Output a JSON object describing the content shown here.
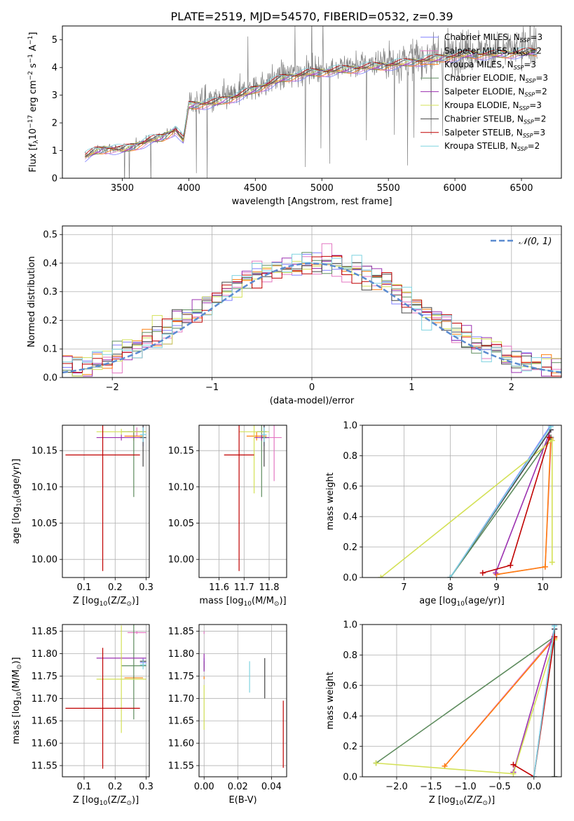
{
  "figure": {
    "title": "PLATE=2519, MJD=54570, FIBERID=0532, z=0.39"
  },
  "chart_data": [
    {
      "id": "spectrum",
      "type": "line",
      "title": "PLATE=2519, MJD=54570, FIBERID=0532, z=0.39",
      "xlabel": "wavelength [Angstrom, rest frame]",
      "ylabel_parts": [
        "Flux [",
        "f",
        "λ",
        "10",
        "−17",
        " erg cm",
        "−2",
        " s",
        "−1",
        " A",
        "−1",
        "]"
      ],
      "xlim": [
        3050,
        6800
      ],
      "ylim": [
        0,
        5.5
      ],
      "xticks": [
        3500,
        4000,
        4500,
        5000,
        5500,
        6000,
        6500
      ],
      "yticks": [
        0,
        1,
        2,
        3,
        4,
        5
      ],
      "grid": false,
      "legend_position": "right",
      "legend": [
        {
          "name": "Chabrier MILES, N",
          "sub": "SSP",
          "tail": "=3",
          "color": "#7f7fff"
        },
        {
          "name": "Salpeter MILES, N",
          "sub": "SSP",
          "tail": "=2",
          "color": "#e377c2"
        },
        {
          "name": "Kroupa MILES, N",
          "sub": "SSP",
          "tail": "=3",
          "color": "#ff7f0e"
        },
        {
          "name": "Chabrier ELODIE, N",
          "sub": "SSP",
          "tail": "=3",
          "color": "#5e8c5e"
        },
        {
          "name": "Salpeter ELODIE, N",
          "sub": "SSP",
          "tail": "=2",
          "color": "#9b30b0"
        },
        {
          "name": "Kroupa ELODIE, N",
          "sub": "SSP",
          "tail": "=3",
          "color": "#d4e157"
        },
        {
          "name": "Chabrier STELIB, N",
          "sub": "SSP",
          "tail": "=2",
          "color": "#444444"
        },
        {
          "name": "Salpeter STELIB, N",
          "sub": "SSP",
          "tail": "=3",
          "color": "#c00000"
        },
        {
          "name": "Kroupa STELIB, N",
          "sub": "SSP",
          "tail": "=2",
          "color": "#7fd3e0"
        }
      ],
      "data_color": "#808080",
      "data_range": [
        3220,
        6620
      ],
      "continuum_knots": [
        [
          3220,
          0.8
        ],
        [
          3300,
          1.0
        ],
        [
          3400,
          1.1
        ],
        [
          3500,
          1.05
        ],
        [
          3600,
          1.2
        ],
        [
          3700,
          1.4
        ],
        [
          3800,
          1.5
        ],
        [
          3900,
          1.8
        ],
        [
          3960,
          1.4
        ],
        [
          4000,
          2.7
        ],
        [
          4200,
          2.8
        ],
        [
          4400,
          3.1
        ],
        [
          4500,
          3.3
        ],
        [
          4700,
          3.7
        ],
        [
          4900,
          3.9
        ],
        [
          5100,
          4.0
        ],
        [
          5300,
          4.1
        ],
        [
          5500,
          4.2
        ],
        [
          5800,
          4.4
        ],
        [
          6100,
          4.6
        ],
        [
          6300,
          4.6
        ],
        [
          6620,
          4.7
        ]
      ]
    },
    {
      "id": "residuals",
      "type": "step",
      "xlabel": "(data-model)/error",
      "ylabel": "Normed distribution",
      "xlim": [
        -2.5,
        2.5
      ],
      "ylim": [
        0,
        0.53
      ],
      "xticks": [
        -2,
        -1,
        0,
        1,
        2
      ],
      "yticks": [
        0.0,
        0.1,
        0.2,
        0.3,
        0.4,
        0.5
      ],
      "grid": true,
      "legend_position": "top-right",
      "gaussian_label": "𝒩(0, 1)",
      "gaussian_color": "#5b8bd0",
      "bin_width": 0.1
    },
    {
      "id": "age_vs_Z",
      "type": "errorbar",
      "xlabel_parts": [
        "Z [log",
        "10",
        "(Z/Z",
        "⊙",
        ")]"
      ],
      "ylabel_parts": [
        "age  [log",
        "10",
        "(age/yr)]"
      ],
      "xlim": [
        0.03,
        0.31
      ],
      "ylim": [
        9.975,
        10.185
      ],
      "xticks": [
        0.1,
        0.2,
        0.3
      ],
      "yticks": [
        10.0,
        10.05,
        10.1,
        10.15
      ],
      "grid": true,
      "points": [
        {
          "color": "#7f7fff",
          "x": 0.29,
          "xerr": 0.01,
          "y": 10.176,
          "yerr": 0.02
        },
        {
          "color": "#e377c2",
          "x": 0.27,
          "xerr": 0.03,
          "y": 10.176,
          "yerr": 0.006
        },
        {
          "color": "#ff7f0e",
          "x": 0.26,
          "xerr": 0.03,
          "y": 10.17,
          "yerr": 0.006
        },
        {
          "color": "#5e8c5e",
          "x": 0.26,
          "xerr": 0.04,
          "y": 10.176,
          "yerr": 0.09
        },
        {
          "color": "#9b30b0",
          "x": 0.22,
          "xerr": 0.08,
          "y": 10.168,
          "yerr": 0.004
        },
        {
          "color": "#d4e157",
          "x": 0.22,
          "xerr": 0.08,
          "y": 10.176,
          "yerr": 0.004
        },
        {
          "color": "#444444",
          "x": 0.29,
          "xerr": 0.01,
          "y": 10.168,
          "yerr": 0.04
        },
        {
          "color": "#c00000",
          "x": 0.16,
          "xerr": 0.12,
          "y": 10.144,
          "yerr": 0.16
        },
        {
          "color": "#7fd3e0",
          "x": 0.29,
          "xerr": 0.01,
          "y": 10.172,
          "yerr": 0.01
        }
      ]
    },
    {
      "id": "age_vs_mass",
      "type": "errorbar",
      "xlabel_parts": [
        "mass [log",
        "10",
        "(M/M",
        "⊙",
        ")]"
      ],
      "ylabel": "",
      "xlim": [
        11.52,
        11.87
      ],
      "ylim": [
        9.975,
        10.185
      ],
      "xticks": [
        11.6,
        11.7,
        11.8
      ],
      "yticks": [
        10.0,
        10.05,
        10.1,
        10.15
      ],
      "grid": true,
      "points": [
        {
          "color": "#7f7fff",
          "x": 11.78,
          "xerr": 0.01,
          "y": 10.176,
          "yerr": 0.02
        },
        {
          "color": "#e377c2",
          "x": 11.82,
          "xerr": 0.03,
          "y": 10.168,
          "yerr": 0.06
        },
        {
          "color": "#ff7f0e",
          "x": 11.75,
          "xerr": 0.04,
          "y": 10.17,
          "yerr": 0.006
        },
        {
          "color": "#5e8c5e",
          "x": 11.77,
          "xerr": 0.02,
          "y": 10.176,
          "yerr": 0.09
        },
        {
          "color": "#9b30b0",
          "x": 11.77,
          "xerr": 0.03,
          "y": 10.168,
          "yerr": 0.004
        },
        {
          "color": "#d4e157",
          "x": 11.74,
          "xerr": 0.06,
          "y": 10.176,
          "yerr": 0.085
        },
        {
          "color": "#444444",
          "x": 11.78,
          "xerr": 0.01,
          "y": 10.168,
          "yerr": 0.04
        },
        {
          "color": "#c00000",
          "x": 11.68,
          "xerr": 0.06,
          "y": 10.144,
          "yerr": 0.16
        },
        {
          "color": "#7fd3e0",
          "x": 11.78,
          "xerr": 0.01,
          "y": 10.172,
          "yerr": 0.01
        }
      ]
    },
    {
      "id": "mass_weight_vs_age",
      "type": "line",
      "xlabel_parts": [
        "age  [log",
        "10",
        "(age/yr)]"
      ],
      "ylabel": "mass weight",
      "xlim": [
        6.1,
        10.4
      ],
      "ylim": [
        0,
        1.0
      ],
      "xticks": [
        7,
        8,
        9,
        10
      ],
      "yticks": [
        0.0,
        0.2,
        0.4,
        0.6,
        0.8,
        1.0
      ],
      "grid": true,
      "series": [
        {
          "color": "#7f7fff",
          "points": [
            [
              8.0,
              0.0
            ],
            [
              10.17,
              1.0
            ]
          ]
        },
        {
          "color": "#e377c2",
          "points": [
            [
              9.0,
              0.02
            ],
            [
              10.05,
              0.07
            ],
            [
              10.18,
              0.92
            ]
          ]
        },
        {
          "color": "#ff7f0e",
          "points": [
            [
              9.0,
              0.02
            ],
            [
              10.05,
              0.07
            ],
            [
              10.17,
              0.91
            ]
          ]
        },
        {
          "color": "#5e8c5e",
          "points": [
            [
              8.0,
              0.0
            ],
            [
              10.17,
              0.92
            ]
          ]
        },
        {
          "color": "#9b30b0",
          "points": [
            [
              8.98,
              0.03
            ],
            [
              10.17,
              0.97
            ]
          ]
        },
        {
          "color": "#d4e157",
          "points": [
            [
              6.5,
              0.0
            ],
            [
              10.2,
              0.9
            ],
            [
              10.2,
              0.1
            ]
          ]
        },
        {
          "color": "#444444",
          "points": [
            [
              8.0,
              0.0
            ],
            [
              10.17,
              0.97
            ]
          ]
        },
        {
          "color": "#c00000",
          "points": [
            [
              8.7,
              0.03
            ],
            [
              9.3,
              0.08
            ],
            [
              10.14,
              0.92
            ]
          ]
        },
        {
          "color": "#7fd3e0",
          "points": [
            [
              8.0,
              0.0
            ],
            [
              10.17,
              0.99
            ]
          ]
        }
      ]
    },
    {
      "id": "mass_vs_Z",
      "type": "errorbar",
      "xlabel_parts": [
        "Z [log",
        "10",
        "(Z/Z",
        "⊙",
        ")]"
      ],
      "ylabel_parts": [
        "mass [log",
        "10",
        "(M/M",
        "⊙",
        ")]"
      ],
      "xlim": [
        0.03,
        0.31
      ],
      "ylim": [
        11.525,
        11.865
      ],
      "xticks": [
        0.1,
        0.2,
        0.3
      ],
      "yticks": [
        11.55,
        11.6,
        11.65,
        11.7,
        11.75,
        11.8,
        11.85
      ],
      "grid": true,
      "points": [
        {
          "color": "#7f7fff",
          "x": 0.29,
          "xerr": 0.01,
          "y": 11.78,
          "yerr": 0.01
        },
        {
          "color": "#e377c2",
          "x": 0.27,
          "xerr": 0.03,
          "y": 11.847,
          "yerr": 0.003
        },
        {
          "color": "#ff7f0e",
          "x": 0.26,
          "xerr": 0.03,
          "y": 11.746,
          "yerr": 0.003
        },
        {
          "color": "#5e8c5e",
          "x": 0.26,
          "xerr": 0.04,
          "y": 11.773,
          "yerr": 0.12
        },
        {
          "color": "#9b30b0",
          "x": 0.22,
          "xerr": 0.08,
          "y": 11.79,
          "yerr": 0.003
        },
        {
          "color": "#d4e157",
          "x": 0.22,
          "xerr": 0.08,
          "y": 11.743,
          "yerr": 0.12
        },
        {
          "color": "#444444",
          "x": 0.29,
          "xerr": 0.01,
          "y": 11.783,
          "yerr": 0.003
        },
        {
          "color": "#c00000",
          "x": 0.16,
          "xerr": 0.12,
          "y": 11.678,
          "yerr": 0.135
        },
        {
          "color": "#7fd3e0",
          "x": 0.29,
          "xerr": 0.01,
          "y": 11.775,
          "yerr": 0.01
        }
      ]
    },
    {
      "id": "mass_vs_ebv",
      "type": "errorbar",
      "xlabel": "E(B-V)",
      "ylabel": "",
      "xlim": [
        -0.003,
        0.049
      ],
      "ylim": [
        11.525,
        11.865
      ],
      "xticks": [
        0.0,
        0.02,
        0.04
      ],
      "yticks": [
        11.55,
        11.6,
        11.65,
        11.7,
        11.75,
        11.8,
        11.85
      ],
      "grid": true,
      "points": [
        {
          "color": "#7f7fff",
          "x": 0.0,
          "xerr": 0.0,
          "y": 11.78,
          "yerr": 0.01
        },
        {
          "color": "#e377c2",
          "x": 0.0,
          "xerr": 0.0,
          "y": 11.847,
          "yerr": 0.003
        },
        {
          "color": "#ff7f0e",
          "x": 0.0,
          "xerr": 0.0,
          "y": 11.746,
          "yerr": 0.003
        },
        {
          "color": "#5e8c5e",
          "x": 0.0,
          "xerr": 0.0,
          "y": 11.773,
          "yerr": 0.01
        },
        {
          "color": "#9b30b0",
          "x": 0.0,
          "xerr": 0.0,
          "y": 11.78,
          "yerr": 0.02
        },
        {
          "color": "#d4e157",
          "x": 0.0,
          "xerr": 0.0,
          "y": 11.68,
          "yerr": 0.05
        },
        {
          "color": "#444444",
          "x": 0.036,
          "xerr": 0.0,
          "y": 11.745,
          "yerr": 0.045
        },
        {
          "color": "#c00000",
          "x": 0.047,
          "xerr": 0.0,
          "y": 11.62,
          "yerr": 0.075
        },
        {
          "color": "#7fd3e0",
          "x": 0.027,
          "xerr": 0.0,
          "y": 11.748,
          "yerr": 0.035
        }
      ]
    },
    {
      "id": "mass_weight_vs_Z",
      "type": "line",
      "xlabel_parts": [
        "Z [log",
        "10",
        "(Z/Z",
        "⊙",
        ")]"
      ],
      "ylabel": "mass weight",
      "xlim": [
        -2.5,
        0.4
      ],
      "ylim": [
        0,
        1.0
      ],
      "xticks": [
        -2.0,
        -1.5,
        -1.0,
        -0.5,
        0.0
      ],
      "yticks": [
        0.0,
        0.2,
        0.4,
        0.6,
        0.8,
        1.0
      ],
      "grid": true,
      "series": [
        {
          "color": "#7f7fff",
          "points": [
            [
              0.0,
              0.0
            ],
            [
              0.3,
              1.0
            ]
          ]
        },
        {
          "color": "#e377c2",
          "points": [
            [
              -1.3,
              0.07
            ],
            [
              0.3,
              0.92
            ]
          ]
        },
        {
          "color": "#ff7f0e",
          "points": [
            [
              -1.3,
              0.07
            ],
            [
              0.3,
              0.91
            ]
          ]
        },
        {
          "color": "#5e8c5e",
          "points": [
            [
              -2.3,
              0.09
            ],
            [
              0.3,
              0.92
            ],
            [
              0.3,
              0.0
            ]
          ]
        },
        {
          "color": "#9b30b0",
          "points": [
            [
              -0.3,
              0.03
            ],
            [
              0.3,
              0.97
            ]
          ]
        },
        {
          "color": "#d4e157",
          "points": [
            [
              -2.3,
              0.09
            ],
            [
              -0.3,
              0.02
            ],
            [
              0.3,
              0.9
            ]
          ]
        },
        {
          "color": "#444444",
          "points": [
            [
              0.3,
              0.0
            ],
            [
              0.3,
              0.97
            ]
          ]
        },
        {
          "color": "#c00000",
          "points": [
            [
              -0.3,
              0.08
            ],
            [
              0.0,
              0.0
            ],
            [
              0.3,
              0.92
            ]
          ]
        },
        {
          "color": "#7fd3e0",
          "points": [
            [
              0.0,
              0.0
            ],
            [
              0.3,
              0.99
            ]
          ]
        }
      ]
    }
  ]
}
